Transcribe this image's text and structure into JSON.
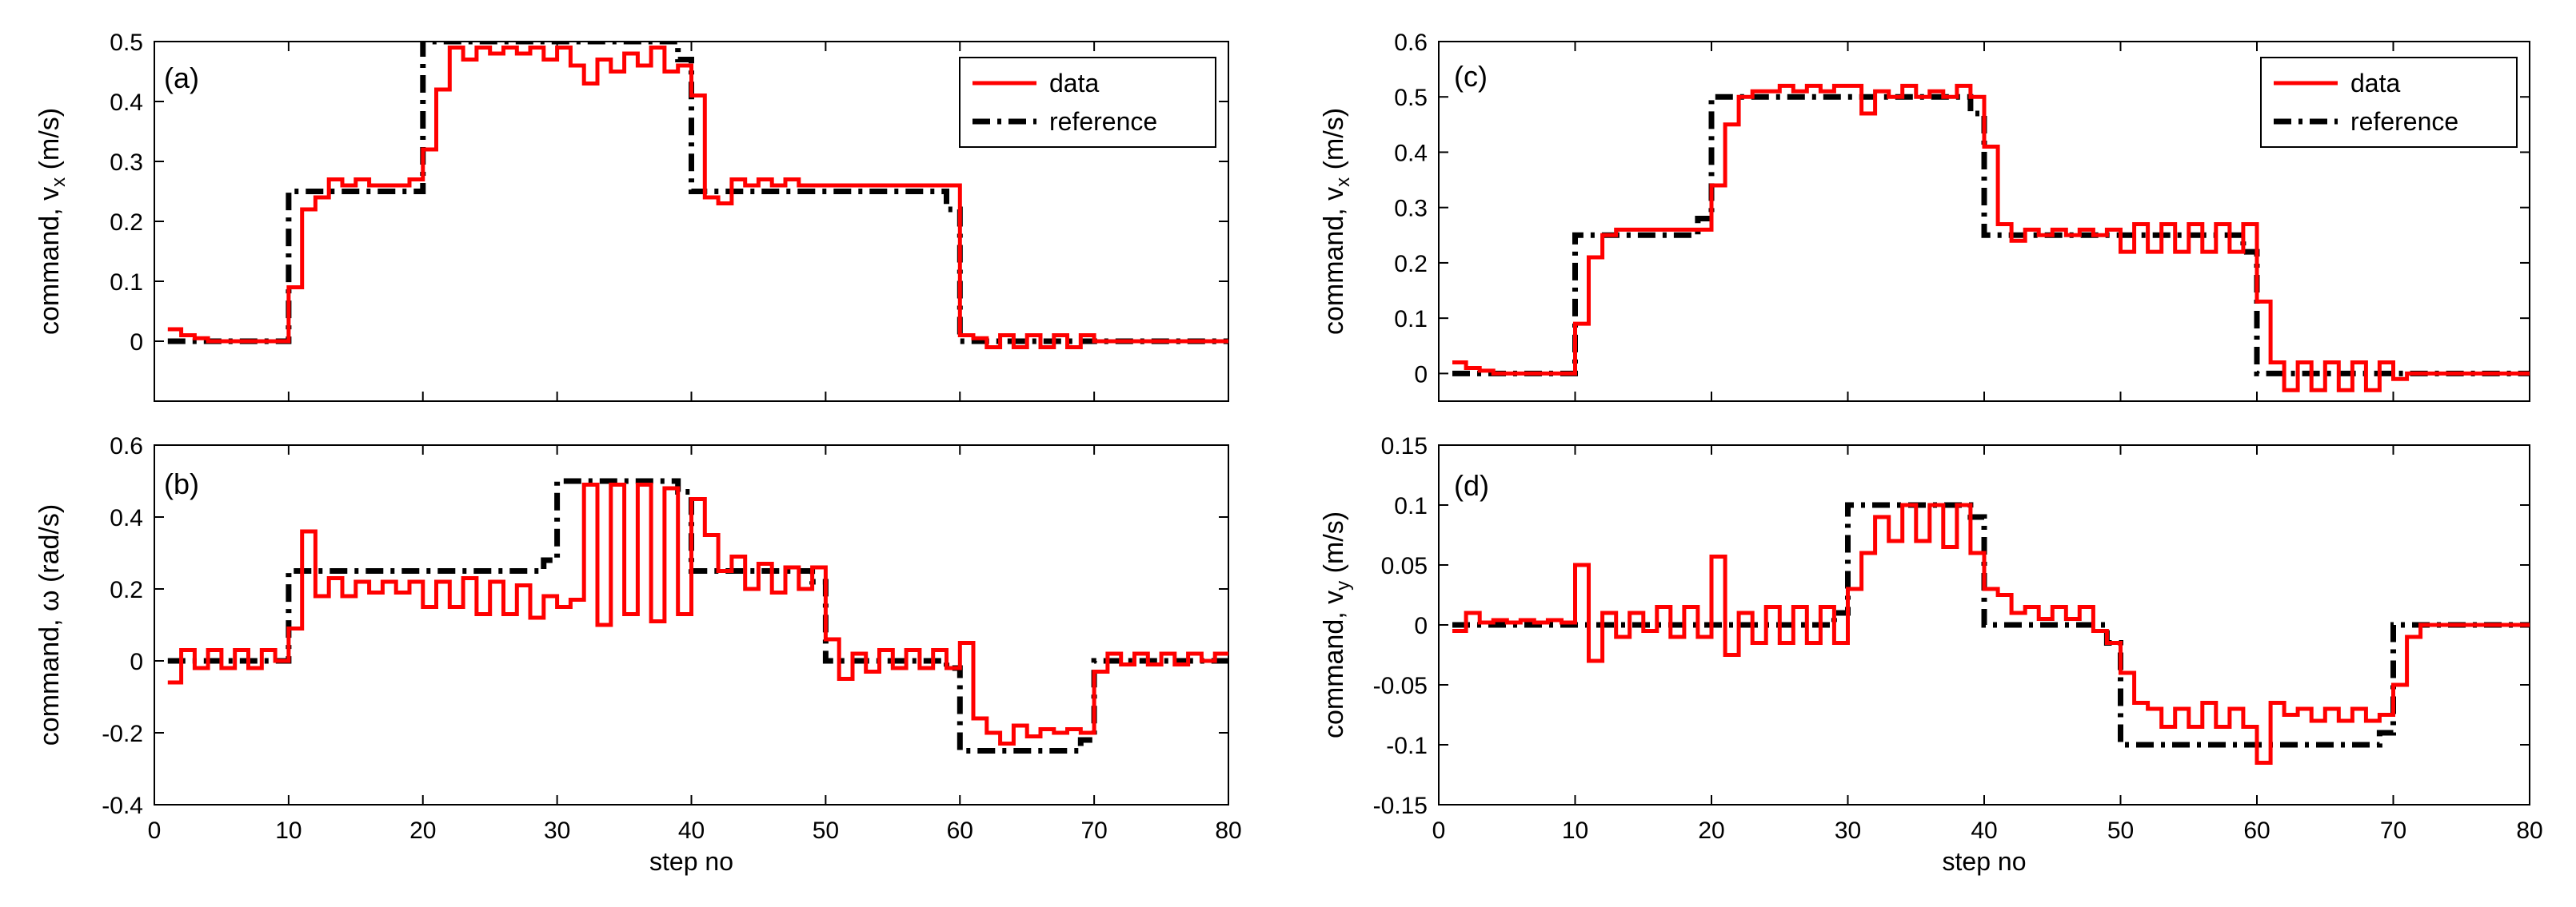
{
  "figure": {
    "legend_data": "data",
    "legend_reference": "reference",
    "colors": {
      "data": "#ff0000",
      "reference": "#000000",
      "axes": "#000000",
      "background": "#ffffff"
    }
  },
  "chart_data": [
    {
      "id": "a",
      "type": "line",
      "panel_label": "(a)",
      "ylabel_main": "command, v",
      "ylabel_sub": "x",
      "ylabel_unit": "(m/s)",
      "xlabel": "",
      "xlim": [
        0,
        80
      ],
      "ylim": [
        -0.1,
        0.5
      ],
      "xticks": [
        0,
        10,
        20,
        30,
        40,
        50,
        60,
        70,
        80
      ],
      "yticks": [
        0,
        0.1,
        0.2,
        0.3,
        0.4,
        0.5
      ],
      "show_xtick_labels": false,
      "legend": true,
      "legend_position": "top-right",
      "series": [
        {
          "name": "data",
          "style": "step-solid",
          "x": [
            1,
            2,
            3,
            4,
            5,
            6,
            7,
            8,
            9,
            10,
            11,
            12,
            13,
            14,
            15,
            16,
            17,
            18,
            19,
            20,
            21,
            22,
            23,
            24,
            25,
            26,
            27,
            28,
            29,
            30,
            31,
            32,
            33,
            34,
            35,
            36,
            37,
            38,
            39,
            40,
            41,
            42,
            43,
            44,
            45,
            46,
            47,
            48,
            49,
            50,
            51,
            52,
            53,
            54,
            55,
            56,
            57,
            58,
            59,
            60,
            61,
            62,
            63,
            64,
            65,
            66,
            67,
            68,
            69,
            70,
            71,
            72,
            73,
            74,
            75,
            76,
            77,
            78,
            79
          ],
          "values": [
            0.02,
            0.01,
            0.005,
            0,
            0,
            0,
            0,
            0,
            0,
            0.09,
            0.22,
            0.24,
            0.27,
            0.26,
            0.27,
            0.26,
            0.26,
            0.26,
            0.27,
            0.32,
            0.42,
            0.49,
            0.47,
            0.49,
            0.48,
            0.49,
            0.48,
            0.49,
            0.47,
            0.49,
            0.46,
            0.43,
            0.47,
            0.45,
            0.48,
            0.46,
            0.49,
            0.45,
            0.46,
            0.41,
            0.24,
            0.23,
            0.27,
            0.26,
            0.27,
            0.26,
            0.27,
            0.26,
            0.26,
            0.26,
            0.26,
            0.26,
            0.26,
            0.26,
            0.26,
            0.26,
            0.26,
            0.26,
            0.26,
            0.01,
            0.005,
            -0.01,
            0.01,
            -0.01,
            0.01,
            -0.01,
            0.01,
            -0.01,
            0.01,
            0,
            0,
            0,
            0,
            0,
            0,
            0,
            0,
            0,
            0
          ]
        },
        {
          "name": "reference",
          "style": "step-dashdot",
          "x": [
            1,
            9,
            10,
            19,
            20,
            29,
            30,
            39,
            40,
            49,
            50,
            59,
            60,
            69,
            70,
            79
          ],
          "values": [
            0,
            0,
            0.25,
            0.25,
            0.5,
            0.5,
            0.5,
            0.47,
            0.25,
            0.25,
            0.25,
            0.22,
            0,
            0,
            0,
            0
          ]
        }
      ]
    },
    {
      "id": "b",
      "type": "line",
      "panel_label": "(b)",
      "ylabel_main": "command, ω",
      "ylabel_sub": "",
      "ylabel_unit": "(rad/s)",
      "xlabel": "step no",
      "xlim": [
        0,
        80
      ],
      "ylim": [
        -0.4,
        0.6
      ],
      "xticks": [
        0,
        10,
        20,
        30,
        40,
        50,
        60,
        70,
        80
      ],
      "yticks": [
        -0.4,
        -0.2,
        0,
        0.2,
        0.4,
        0.6
      ],
      "show_xtick_labels": true,
      "legend": false,
      "series": [
        {
          "name": "data",
          "style": "step-solid",
          "x": [
            1,
            2,
            3,
            4,
            5,
            6,
            7,
            8,
            9,
            10,
            11,
            12,
            13,
            14,
            15,
            16,
            17,
            18,
            19,
            20,
            21,
            22,
            23,
            24,
            25,
            26,
            27,
            28,
            29,
            30,
            31,
            32,
            33,
            34,
            35,
            36,
            37,
            38,
            39,
            40,
            41,
            42,
            43,
            44,
            45,
            46,
            47,
            48,
            49,
            50,
            51,
            52,
            53,
            54,
            55,
            56,
            57,
            58,
            59,
            60,
            61,
            62,
            63,
            64,
            65,
            66,
            67,
            68,
            69,
            70,
            71,
            72,
            73,
            74,
            75,
            76,
            77,
            78,
            79
          ],
          "values": [
            -0.06,
            0.03,
            -0.02,
            0.03,
            -0.02,
            0.03,
            -0.02,
            0.03,
            0,
            0.09,
            0.36,
            0.18,
            0.23,
            0.18,
            0.22,
            0.19,
            0.22,
            0.19,
            0.22,
            0.15,
            0.22,
            0.15,
            0.23,
            0.13,
            0.22,
            0.13,
            0.21,
            0.12,
            0.18,
            0.15,
            0.17,
            0.49,
            0.1,
            0.49,
            0.13,
            0.49,
            0.11,
            0.48,
            0.13,
            0.45,
            0.35,
            0.25,
            0.29,
            0.2,
            0.27,
            0.19,
            0.26,
            0.2,
            0.26,
            0.06,
            -0.05,
            0.02,
            -0.03,
            0.03,
            -0.02,
            0.03,
            -0.02,
            0.03,
            -0.02,
            0.05,
            -0.16,
            -0.2,
            -0.23,
            -0.18,
            -0.21,
            -0.19,
            -0.2,
            -0.19,
            -0.2,
            -0.03,
            0.02,
            -0.01,
            0.02,
            -0.01,
            0.02,
            -0.01,
            0.02,
            0,
            0.02
          ]
        },
        {
          "name": "reference",
          "style": "step-dashdot",
          "x": [
            1,
            9,
            10,
            29,
            30,
            39,
            40,
            49,
            50,
            59,
            60,
            69,
            70,
            79
          ],
          "values": [
            0,
            0,
            0.25,
            0.28,
            0.5,
            0.47,
            0.25,
            0.22,
            0,
            -0.02,
            -0.25,
            -0.22,
            0,
            0
          ]
        }
      ]
    },
    {
      "id": "c",
      "type": "line",
      "panel_label": "(c)",
      "ylabel_main": "command, v",
      "ylabel_sub": "x",
      "ylabel_unit": "(m/s)",
      "xlabel": "",
      "xlim": [
        0,
        80
      ],
      "ylim": [
        -0.05,
        0.6
      ],
      "xticks": [
        0,
        10,
        20,
        30,
        40,
        50,
        60,
        70,
        80
      ],
      "yticks": [
        0,
        0.1,
        0.2,
        0.3,
        0.4,
        0.5,
        0.6
      ],
      "show_xtick_labels": false,
      "legend": true,
      "legend_position": "top-right",
      "series": [
        {
          "name": "data",
          "style": "step-solid",
          "x": [
            1,
            2,
            3,
            4,
            5,
            6,
            7,
            8,
            9,
            10,
            11,
            12,
            13,
            14,
            15,
            16,
            17,
            18,
            19,
            20,
            21,
            22,
            23,
            24,
            25,
            26,
            27,
            28,
            29,
            30,
            31,
            32,
            33,
            34,
            35,
            36,
            37,
            38,
            39,
            40,
            41,
            42,
            43,
            44,
            45,
            46,
            47,
            48,
            49,
            50,
            51,
            52,
            53,
            54,
            55,
            56,
            57,
            58,
            59,
            60,
            61,
            62,
            63,
            64,
            65,
            66,
            67,
            68,
            69,
            70,
            71,
            72,
            73,
            74,
            75,
            76,
            77,
            78,
            79
          ],
          "values": [
            0.02,
            0.01,
            0.005,
            0,
            0,
            0,
            0,
            0,
            0,
            0.09,
            0.21,
            0.25,
            0.26,
            0.26,
            0.26,
            0.26,
            0.26,
            0.26,
            0.26,
            0.34,
            0.45,
            0.5,
            0.51,
            0.51,
            0.52,
            0.51,
            0.52,
            0.51,
            0.52,
            0.52,
            0.47,
            0.51,
            0.5,
            0.52,
            0.5,
            0.51,
            0.5,
            0.52,
            0.5,
            0.41,
            0.27,
            0.24,
            0.26,
            0.25,
            0.26,
            0.25,
            0.26,
            0.25,
            0.26,
            0.22,
            0.27,
            0.22,
            0.27,
            0.22,
            0.27,
            0.22,
            0.27,
            0.22,
            0.27,
            0.13,
            0.02,
            -0.03,
            0.02,
            -0.03,
            0.02,
            -0.03,
            0.02,
            -0.03,
            0.02,
            -0.01,
            0,
            0,
            0,
            0,
            0,
            0,
            0,
            0,
            0
          ]
        },
        {
          "name": "reference",
          "style": "step-dashdot",
          "x": [
            1,
            9,
            10,
            19,
            20,
            39,
            40,
            59,
            60,
            69,
            70,
            79
          ],
          "values": [
            0,
            0,
            0.25,
            0.28,
            0.5,
            0.47,
            0.25,
            0.22,
            0,
            0,
            0,
            0
          ]
        }
      ]
    },
    {
      "id": "d",
      "type": "line",
      "panel_label": "(d)",
      "ylabel_main": "command, v",
      "ylabel_sub": "y",
      "ylabel_unit": "(m/s)",
      "xlabel": "step no",
      "xlim": [
        0,
        80
      ],
      "ylim": [
        -0.15,
        0.15
      ],
      "xticks": [
        0,
        10,
        20,
        30,
        40,
        50,
        60,
        70,
        80
      ],
      "yticks": [
        -0.15,
        -0.1,
        -0.05,
        0,
        0.05,
        0.1,
        0.15
      ],
      "show_xtick_labels": true,
      "legend": false,
      "series": [
        {
          "name": "data",
          "style": "step-solid",
          "x": [
            1,
            2,
            3,
            4,
            5,
            6,
            7,
            8,
            9,
            10,
            11,
            12,
            13,
            14,
            15,
            16,
            17,
            18,
            19,
            20,
            21,
            22,
            23,
            24,
            25,
            26,
            27,
            28,
            29,
            30,
            31,
            32,
            33,
            34,
            35,
            36,
            37,
            38,
            39,
            40,
            41,
            42,
            43,
            44,
            45,
            46,
            47,
            48,
            49,
            50,
            51,
            52,
            53,
            54,
            55,
            56,
            57,
            58,
            59,
            60,
            61,
            62,
            63,
            64,
            65,
            66,
            67,
            68,
            69,
            70,
            71,
            72,
            73,
            74,
            75,
            76,
            77,
            78,
            79
          ],
          "values": [
            -0.005,
            0.01,
            0.002,
            0.004,
            0.002,
            0.004,
            0.002,
            0.004,
            0.002,
            0.05,
            -0.03,
            0.01,
            -0.01,
            0.01,
            -0.005,
            0.015,
            -0.01,
            0.015,
            -0.01,
            0.057,
            -0.025,
            0.01,
            -0.015,
            0.015,
            -0.015,
            0.015,
            -0.015,
            0.015,
            -0.015,
            0.03,
            0.06,
            0.09,
            0.07,
            0.1,
            0.07,
            0.1,
            0.065,
            0.1,
            0.06,
            0.03,
            0.025,
            0.01,
            0.015,
            0.005,
            0.015,
            0.005,
            0.015,
            -0.005,
            -0.015,
            -0.04,
            -0.065,
            -0.07,
            -0.085,
            -0.07,
            -0.085,
            -0.065,
            -0.085,
            -0.07,
            -0.085,
            -0.115,
            -0.065,
            -0.075,
            -0.07,
            -0.08,
            -0.07,
            -0.08,
            -0.07,
            -0.08,
            -0.075,
            -0.05,
            -0.01,
            0,
            0,
            0,
            0,
            0,
            0,
            0,
            0
          ]
        },
        {
          "name": "reference",
          "style": "step-dashdot",
          "x": [
            1,
            9,
            10,
            29,
            30,
            39,
            40,
            49,
            50,
            59,
            60,
            69,
            70,
            79
          ],
          "values": [
            0,
            0,
            0,
            0.01,
            0.1,
            0.09,
            0,
            -0.015,
            -0.1,
            -0.1,
            -0.1,
            -0.09,
            0,
            0
          ]
        }
      ]
    }
  ]
}
